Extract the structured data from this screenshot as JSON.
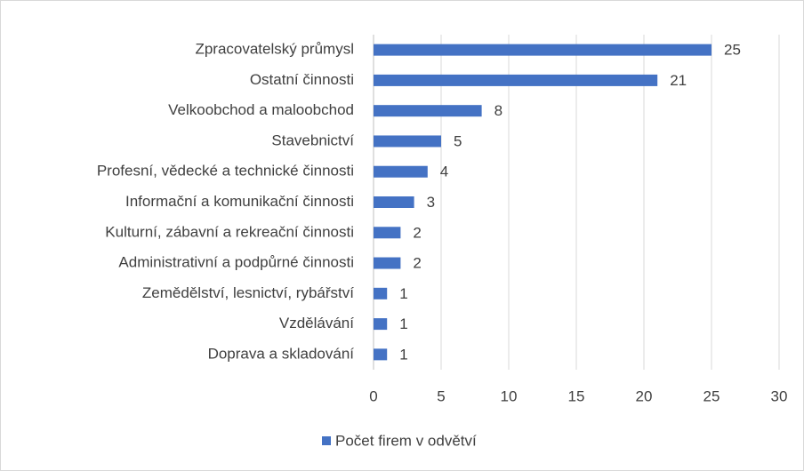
{
  "chart_data": {
    "type": "bar",
    "orientation": "horizontal",
    "categories": [
      "Zpracovatelský průmysl",
      "Ostatní činnosti",
      "Velkoobchod a maloobchod",
      "Stavebnictví",
      "Profesní, vědecké a technické činnosti",
      "Informační a komunikační činnosti",
      "Kulturní, zábavní a rekreační činnosti",
      "Administrativní a podpůrné činnosti",
      "Zemědělství, lesnictví, rybářství",
      "Vzdělávání",
      "Doprava a skladování"
    ],
    "series": [
      {
        "name": "Počet firem v odvětví",
        "color": "#4472c4",
        "values": [
          25,
          21,
          8,
          5,
          4,
          3,
          2,
          2,
          1,
          1,
          1
        ]
      }
    ],
    "xlim": [
      0,
      30
    ],
    "xticks": [
      0,
      5,
      10,
      15,
      20,
      25,
      30
    ],
    "grid": true,
    "legend": "bottom",
    "data_labels": true
  }
}
